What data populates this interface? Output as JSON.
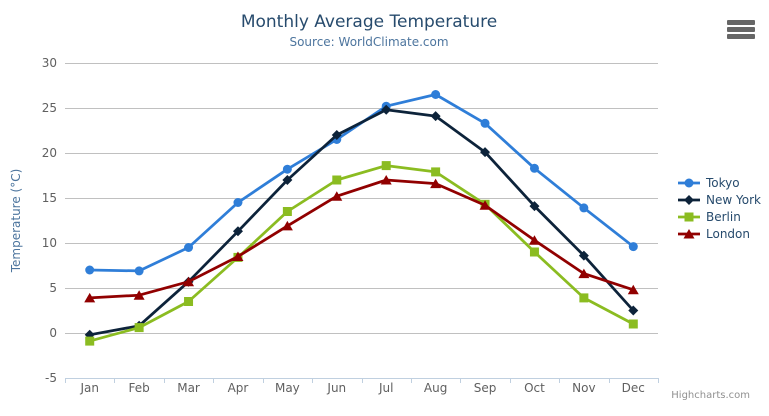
{
  "header": {
    "title": "Monthly Average Temperature",
    "subtitle": "Source: WorldClimate.com"
  },
  "credits": "Highcharts.com",
  "export_menu": {
    "icon": "hamburger-menu-icon"
  },
  "colors": {
    "background": "#ffffff",
    "title": "#274b6d",
    "subtitle": "#4d759e",
    "axis_title": "#4d759e",
    "tick_label": "#606060",
    "grid_line": "#c0c0c0",
    "axis_line": "#c0d0e0",
    "legend_text": "#274b6d",
    "credits": "#909090",
    "menu_icon": "#666666"
  },
  "chart_data": {
    "type": "line",
    "title": "Monthly Average Temperature",
    "subtitle": "Source: WorldClimate.com",
    "xlabel": "",
    "ylabel": "Temperature (°C)",
    "categories": [
      "Jan",
      "Feb",
      "Mar",
      "Apr",
      "May",
      "Jun",
      "Jul",
      "Aug",
      "Sep",
      "Oct",
      "Nov",
      "Dec"
    ],
    "series": [
      {
        "name": "Tokyo",
        "color": "#2f7ed8",
        "marker": "circle",
        "values": [
          7.0,
          6.9,
          9.5,
          14.5,
          18.2,
          21.5,
          25.2,
          26.5,
          23.3,
          18.3,
          13.9,
          9.6
        ]
      },
      {
        "name": "New York",
        "color": "#0d233a",
        "marker": "diamond",
        "values": [
          -0.2,
          0.8,
          5.7,
          11.3,
          17.0,
          22.0,
          24.8,
          24.1,
          20.1,
          14.1,
          8.6,
          2.5
        ]
      },
      {
        "name": "Berlin",
        "color": "#8bbc21",
        "marker": "square",
        "values": [
          -0.9,
          0.6,
          3.5,
          8.4,
          13.5,
          17.0,
          18.6,
          17.9,
          14.3,
          9.0,
          3.9,
          1.0
        ]
      },
      {
        "name": "London",
        "color": "#910000",
        "marker": "triangle",
        "values": [
          3.9,
          4.2,
          5.7,
          8.5,
          11.9,
          15.2,
          17.0,
          16.6,
          14.2,
          10.3,
          6.6,
          4.8
        ]
      }
    ],
    "ylim": [
      -5,
      30
    ],
    "yticks": [
      -5,
      0,
      5,
      10,
      15,
      20,
      25,
      30
    ],
    "grid": true,
    "legend_position": "right"
  }
}
